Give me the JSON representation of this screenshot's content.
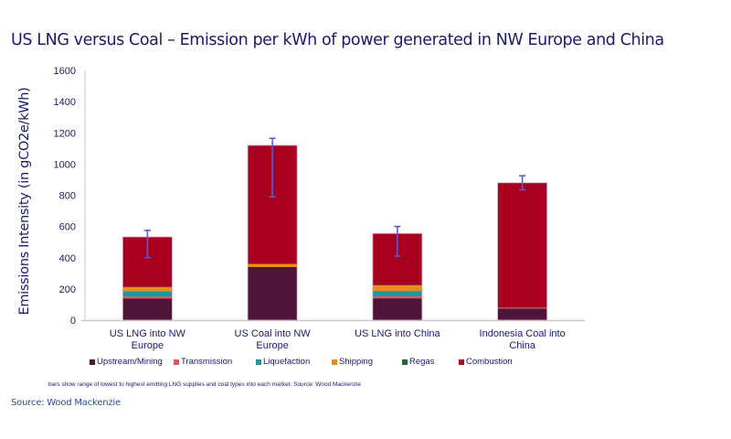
{
  "title": "US LNG versus Coal – Emission per kWh of power generated in NW Europe and China",
  "source": "Source: Wood Mackenzie",
  "chart_data": {
    "type": "bar",
    "stacked": true,
    "title": "US LNG versus Coal – Emission per kWh of power generated in NW Europe and China",
    "xlabel": "",
    "ylabel": "Emissions Intensity (in gCO2e/kWh)",
    "ylim": [
      0,
      1600
    ],
    "yticks": [
      0,
      200,
      400,
      600,
      800,
      1000,
      1200,
      1400,
      1600
    ],
    "grid": false,
    "legend_position": "bottom",
    "categories": [
      [
        "US LNG into NW",
        "Europe"
      ],
      [
        "US Coal into NW",
        "Europe"
      ],
      [
        "US LNG into China"
      ],
      [
        "Indonesia Coal into",
        "China"
      ]
    ],
    "series": [
      {
        "name": "Upstream/Mining",
        "color": "#4f1439",
        "values": [
          138,
          340,
          140,
          75
        ]
      },
      {
        "name": "Transmission",
        "color": "#e8505b",
        "values": [
          12,
          0,
          12,
          5
        ]
      },
      {
        "name": "Liquefaction",
        "color": "#1a9a9a",
        "values": [
          35,
          0,
          35,
          0
        ]
      },
      {
        "name": "Shipping",
        "color": "#f38b12",
        "values": [
          25,
          20,
          35,
          0
        ]
      },
      {
        "name": "Regas",
        "color": "#1e6b35",
        "values": [
          3,
          0,
          3,
          0
        ]
      },
      {
        "name": "Combustion",
        "color": "#a8001e",
        "values": [
          320,
          760,
          330,
          800
        ]
      }
    ],
    "totals": [
      533,
      1120,
      555,
      880
    ],
    "error_bars": {
      "color": "#5b5bd6",
      "low": [
        400,
        790,
        410,
        835
      ],
      "high": [
        575,
        1165,
        600,
        925
      ]
    },
    "note": "bars show range of lowest to highest emitting LNG supplies and coal types into each market. Source: Wood Mackenzie"
  }
}
